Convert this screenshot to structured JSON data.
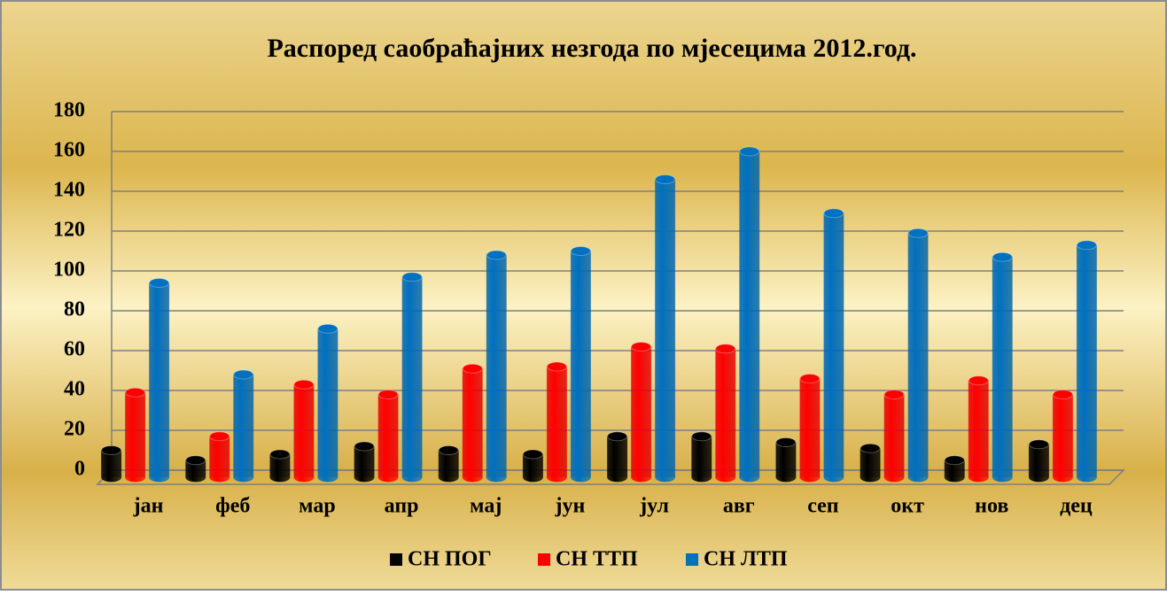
{
  "chart_data": {
    "type": "bar",
    "title": "Распоред  саобраћајних  незгода по мјесецима 2012.год.",
    "categories": [
      "јан",
      "феб",
      "мар",
      "апр",
      "мај",
      "јун",
      "јул",
      "авг",
      "сеп",
      "окт",
      "нов",
      "дец"
    ],
    "series": [
      {
        "name": "СН ПОГ",
        "color": "#000000",
        "values": [
          10,
          5,
          8,
          12,
          10,
          8,
          17,
          17,
          14,
          11,
          5,
          13
        ]
      },
      {
        "name": "СН ТТП",
        "color": "#ff0000",
        "values": [
          39,
          17,
          43,
          38,
          51,
          52,
          62,
          61,
          46,
          38,
          45,
          38
        ]
      },
      {
        "name": "СН ЛТП",
        "color": "#0070c0",
        "values": [
          94,
          48,
          71,
          97,
          108,
          110,
          146,
          160,
          129,
          119,
          107,
          113
        ]
      }
    ],
    "ylim": [
      0,
      180
    ],
    "yticks": [
      0,
      20,
      40,
      60,
      80,
      100,
      120,
      140,
      160,
      180
    ],
    "grid": true,
    "legend": "bottom"
  }
}
